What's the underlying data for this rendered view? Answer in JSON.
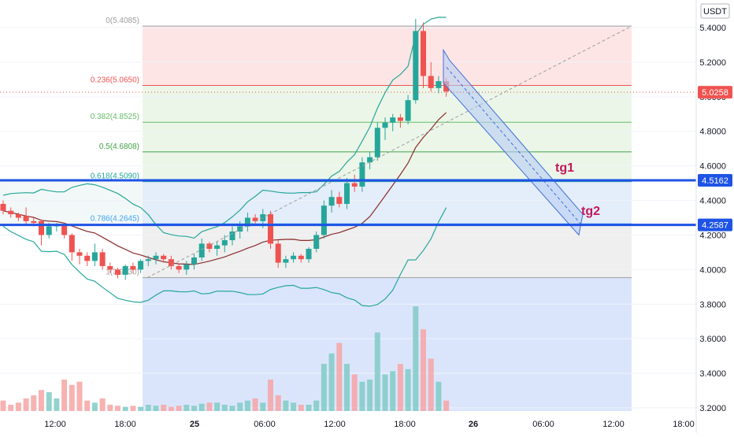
{
  "currency_label": "USDT",
  "current_price": "5.0258",
  "hline_price_1": "4.5162",
  "hline_price_2": "4.2587",
  "target_labels": [
    "tg1",
    "tg2"
  ],
  "colors": {
    "up": "#26a69a",
    "down": "#ef5350",
    "hline": "#1e53e5",
    "fib_top_fill": "#fde0e0",
    "fib_green_fill": "#e8f5e4",
    "fib_blue_fill": "#dfeaf9",
    "fib_gray_fill": "#ececec",
    "fib_bottom_fill": "#d4e0fb",
    "channel_fill": "#b8cdf3",
    "target_text": "#c2185b",
    "price_badge": "#ef5350",
    "hline_badge": "#1e53e5"
  },
  "chart_data": {
    "type": "candlestick",
    "y_axis": {
      "ticks": [
        "5.4000",
        "5.2000",
        "5.0000",
        "4.8000",
        "4.6000",
        "4.4000",
        "4.2000",
        "4.0000",
        "3.8000",
        "3.6000",
        "3.4000",
        "3.2000"
      ],
      "range": [
        3.18,
        5.49
      ]
    },
    "x_axis": {
      "ticks": [
        "12:00",
        "18:00",
        "25",
        "06:00",
        "12:00",
        "18:00",
        "26",
        "06:00",
        "12:00",
        "18:00"
      ]
    },
    "fib_levels": [
      {
        "label": "0(5.4085)",
        "value": 5.4085
      },
      {
        "label": "0.236(5.0650)",
        "value": 5.065
      },
      {
        "label": "0.382(4.8525)",
        "value": 4.8525
      },
      {
        "label": "0.5(4.6808)",
        "value": 4.6808
      },
      {
        "label": "0.618(4.5090)",
        "value": 4.509
      },
      {
        "label": "0.786(4.2645)",
        "value": 4.2645
      },
      {
        "label": "1(3.9530)",
        "value": 3.953
      }
    ],
    "candles_ohlc": [
      [
        4.38,
        4.4,
        4.32,
        4.34
      ],
      [
        4.34,
        4.36,
        4.3,
        4.32
      ],
      [
        4.32,
        4.33,
        4.28,
        4.3
      ],
      [
        4.31,
        4.36,
        4.26,
        4.28
      ],
      [
        4.28,
        4.3,
        4.25,
        4.27
      ],
      [
        4.28,
        4.29,
        4.14,
        4.2
      ],
      [
        4.2,
        4.27,
        4.18,
        4.25
      ],
      [
        4.25,
        4.27,
        4.22,
        4.26
      ],
      [
        4.26,
        4.27,
        4.18,
        4.2
      ],
      [
        4.2,
        4.21,
        4.05,
        4.1
      ],
      [
        4.1,
        4.12,
        4.03,
        4.08
      ],
      [
        4.08,
        4.1,
        4.02,
        4.05
      ],
      [
        4.05,
        4.15,
        4.02,
        4.1
      ],
      [
        4.1,
        4.12,
        4.0,
        4.02
      ],
      [
        4.02,
        4.04,
        3.98,
        4.0
      ],
      [
        4.0,
        4.01,
        3.95,
        3.97
      ],
      [
        3.97,
        4.03,
        3.94,
        4.02
      ],
      [
        4.02,
        4.04,
        3.98,
        4.0
      ],
      [
        4.0,
        4.06,
        3.98,
        4.05
      ],
      [
        4.05,
        4.08,
        4.02,
        4.06
      ],
      [
        4.06,
        4.1,
        4.03,
        4.08
      ],
      [
        4.08,
        4.09,
        4.04,
        4.06
      ],
      [
        4.06,
        4.08,
        4.0,
        4.02
      ],
      [
        4.02,
        4.03,
        3.98,
        4.0
      ],
      [
        4.0,
        4.05,
        3.97,
        4.03
      ],
      [
        4.03,
        4.09,
        4.0,
        4.07
      ],
      [
        4.07,
        4.18,
        4.05,
        4.15
      ],
      [
        4.15,
        4.16,
        4.1,
        4.12
      ],
      [
        4.12,
        4.16,
        4.08,
        4.14
      ],
      [
        4.14,
        4.2,
        4.1,
        4.17
      ],
      [
        4.17,
        4.25,
        4.14,
        4.22
      ],
      [
        4.22,
        4.28,
        4.18,
        4.25
      ],
      [
        4.25,
        4.33,
        4.22,
        4.3
      ],
      [
        4.3,
        4.32,
        4.26,
        4.28
      ],
      [
        4.28,
        4.35,
        4.24,
        4.32
      ],
      [
        4.32,
        4.34,
        4.12,
        4.15
      ],
      [
        4.15,
        4.17,
        4.01,
        4.04
      ],
      [
        4.04,
        4.08,
        4.01,
        4.06
      ],
      [
        4.06,
        4.1,
        4.04,
        4.08
      ],
      [
        4.08,
        4.09,
        4.04,
        4.06
      ],
      [
        4.06,
        4.13,
        4.04,
        4.12
      ],
      [
        4.12,
        4.22,
        4.1,
        4.2
      ],
      [
        4.2,
        4.4,
        4.18,
        4.37
      ],
      [
        4.37,
        4.46,
        4.33,
        4.42
      ],
      [
        4.42,
        4.45,
        4.36,
        4.38
      ],
      [
        4.38,
        4.53,
        4.35,
        4.5
      ],
      [
        4.5,
        4.55,
        4.45,
        4.48
      ],
      [
        4.48,
        4.65,
        4.45,
        4.62
      ],
      [
        4.62,
        4.68,
        4.58,
        4.65
      ],
      [
        4.65,
        4.85,
        4.63,
        4.82
      ],
      [
        4.82,
        4.88,
        4.75,
        4.85
      ],
      [
        4.85,
        4.9,
        4.8,
        4.88
      ],
      [
        4.88,
        4.9,
        4.82,
        4.86
      ],
      [
        4.86,
        5.01,
        4.84,
        4.98
      ],
      [
        4.98,
        5.45,
        4.96,
        5.38
      ],
      [
        5.38,
        5.43,
        5.05,
        5.12
      ],
      [
        5.12,
        5.2,
        5.03,
        5.05
      ],
      [
        5.05,
        5.12,
        5.02,
        5.09
      ],
      [
        5.09,
        5.11,
        5.0,
        5.03
      ]
    ],
    "volume_relative": [
      0.1,
      0.06,
      0.08,
      0.12,
      0.15,
      0.2,
      0.18,
      0.12,
      0.3,
      0.25,
      0.28,
      0.1,
      0.08,
      0.12,
      0.06,
      0.05,
      0.04,
      0.05,
      0.04,
      0.06,
      0.05,
      0.06,
      0.04,
      0.05,
      0.06,
      0.05,
      0.07,
      0.08,
      0.08,
      0.06,
      0.05,
      0.08,
      0.1,
      0.12,
      0.08,
      0.3,
      0.15,
      0.1,
      0.08,
      0.06,
      0.06,
      0.1,
      0.45,
      0.55,
      0.65,
      0.45,
      0.35,
      0.28,
      0.3,
      0.75,
      0.35,
      0.38,
      0.45,
      0.4,
      1.0,
      0.78,
      0.5,
      0.28,
      0.1
    ]
  }
}
